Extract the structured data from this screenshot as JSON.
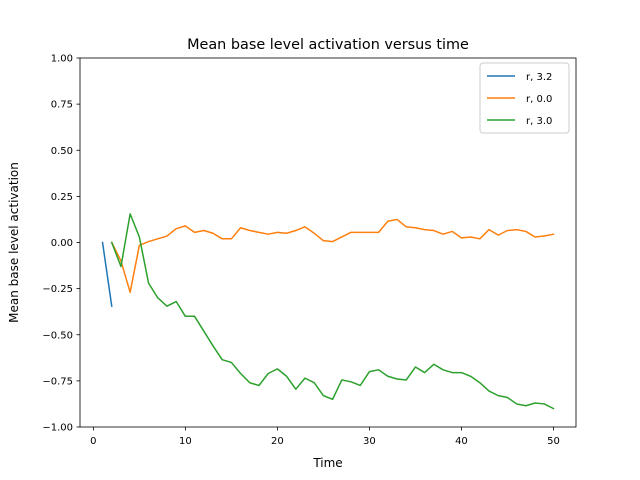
{
  "chart_data": {
    "type": "line",
    "title": "Mean base level activation versus time",
    "xlabel": "Time",
    "ylabel": "Mean base level activation",
    "xlim": [
      -1.45,
      52.45
    ],
    "ylim": [
      -1.0,
      1.0
    ],
    "xticks": [
      0,
      10,
      20,
      30,
      40,
      50
    ],
    "xtick_labels": [
      "0",
      "10",
      "20",
      "30",
      "40",
      "50"
    ],
    "yticks": [
      -1.0,
      -0.75,
      -0.5,
      -0.25,
      0.0,
      0.25,
      0.5,
      0.75,
      1.0
    ],
    "ytick_labels": [
      "−1.00",
      "−0.75",
      "−0.50",
      "−0.25",
      "0.00",
      "0.25",
      "0.50",
      "0.75",
      "1.00"
    ],
    "grid": false,
    "legend_position": "top-right",
    "series": [
      {
        "name": "r, 3.2",
        "color": "#1f77b4",
        "x": [
          1,
          2
        ],
        "y": [
          0.0,
          -0.345
        ]
      },
      {
        "name": "r, 0.0",
        "color": "#ff7f0e",
        "x": [
          2,
          3,
          4,
          5,
          6,
          7,
          8,
          9,
          10,
          11,
          12,
          13,
          14,
          15,
          16,
          17,
          18,
          19,
          20,
          21,
          22,
          23,
          24,
          25,
          26,
          27,
          28,
          29,
          30,
          31,
          32,
          33,
          34,
          35,
          36,
          37,
          38,
          39,
          40,
          41,
          42,
          43,
          44,
          45,
          46,
          47,
          48,
          49,
          50
        ],
        "y": [
          0.0,
          -0.1,
          -0.27,
          -0.015,
          0.005,
          0.02,
          0.035,
          0.075,
          0.09,
          0.055,
          0.065,
          0.05,
          0.02,
          0.02,
          0.08,
          0.065,
          0.055,
          0.045,
          0.055,
          0.05,
          0.065,
          0.085,
          0.05,
          0.01,
          0.005,
          0.03,
          0.055,
          0.055,
          0.055,
          0.055,
          0.115,
          0.125,
          0.085,
          0.08,
          0.07,
          0.065,
          0.045,
          0.06,
          0.025,
          0.03,
          0.02,
          0.07,
          0.04,
          0.065,
          0.07,
          0.06,
          0.03,
          0.035,
          0.045
        ]
      },
      {
        "name": "r, 3.0",
        "color": "#2ca02c",
        "x": [
          2,
          3,
          4,
          5,
          6,
          7,
          8,
          9,
          10,
          11,
          12,
          13,
          14,
          15,
          16,
          17,
          18,
          19,
          20,
          21,
          22,
          23,
          24,
          25,
          26,
          27,
          28,
          29,
          30,
          31,
          32,
          33,
          34,
          35,
          36,
          37,
          38,
          39,
          40,
          41,
          42,
          43,
          44,
          45,
          46,
          47,
          48,
          49,
          50
        ],
        "y": [
          0.0,
          -0.13,
          0.155,
          0.03,
          -0.22,
          -0.3,
          -0.345,
          -0.32,
          -0.4,
          -0.4,
          -0.48,
          -0.56,
          -0.635,
          -0.65,
          -0.71,
          -0.76,
          -0.775,
          -0.71,
          -0.685,
          -0.725,
          -0.795,
          -0.735,
          -0.76,
          -0.83,
          -0.85,
          -0.745,
          -0.755,
          -0.775,
          -0.7,
          -0.69,
          -0.725,
          -0.74,
          -0.745,
          -0.675,
          -0.705,
          -0.66,
          -0.69,
          -0.705,
          -0.705,
          -0.725,
          -0.76,
          -0.805,
          -0.83,
          -0.84,
          -0.875,
          -0.885,
          -0.87,
          -0.875,
          -0.9
        ]
      }
    ]
  }
}
